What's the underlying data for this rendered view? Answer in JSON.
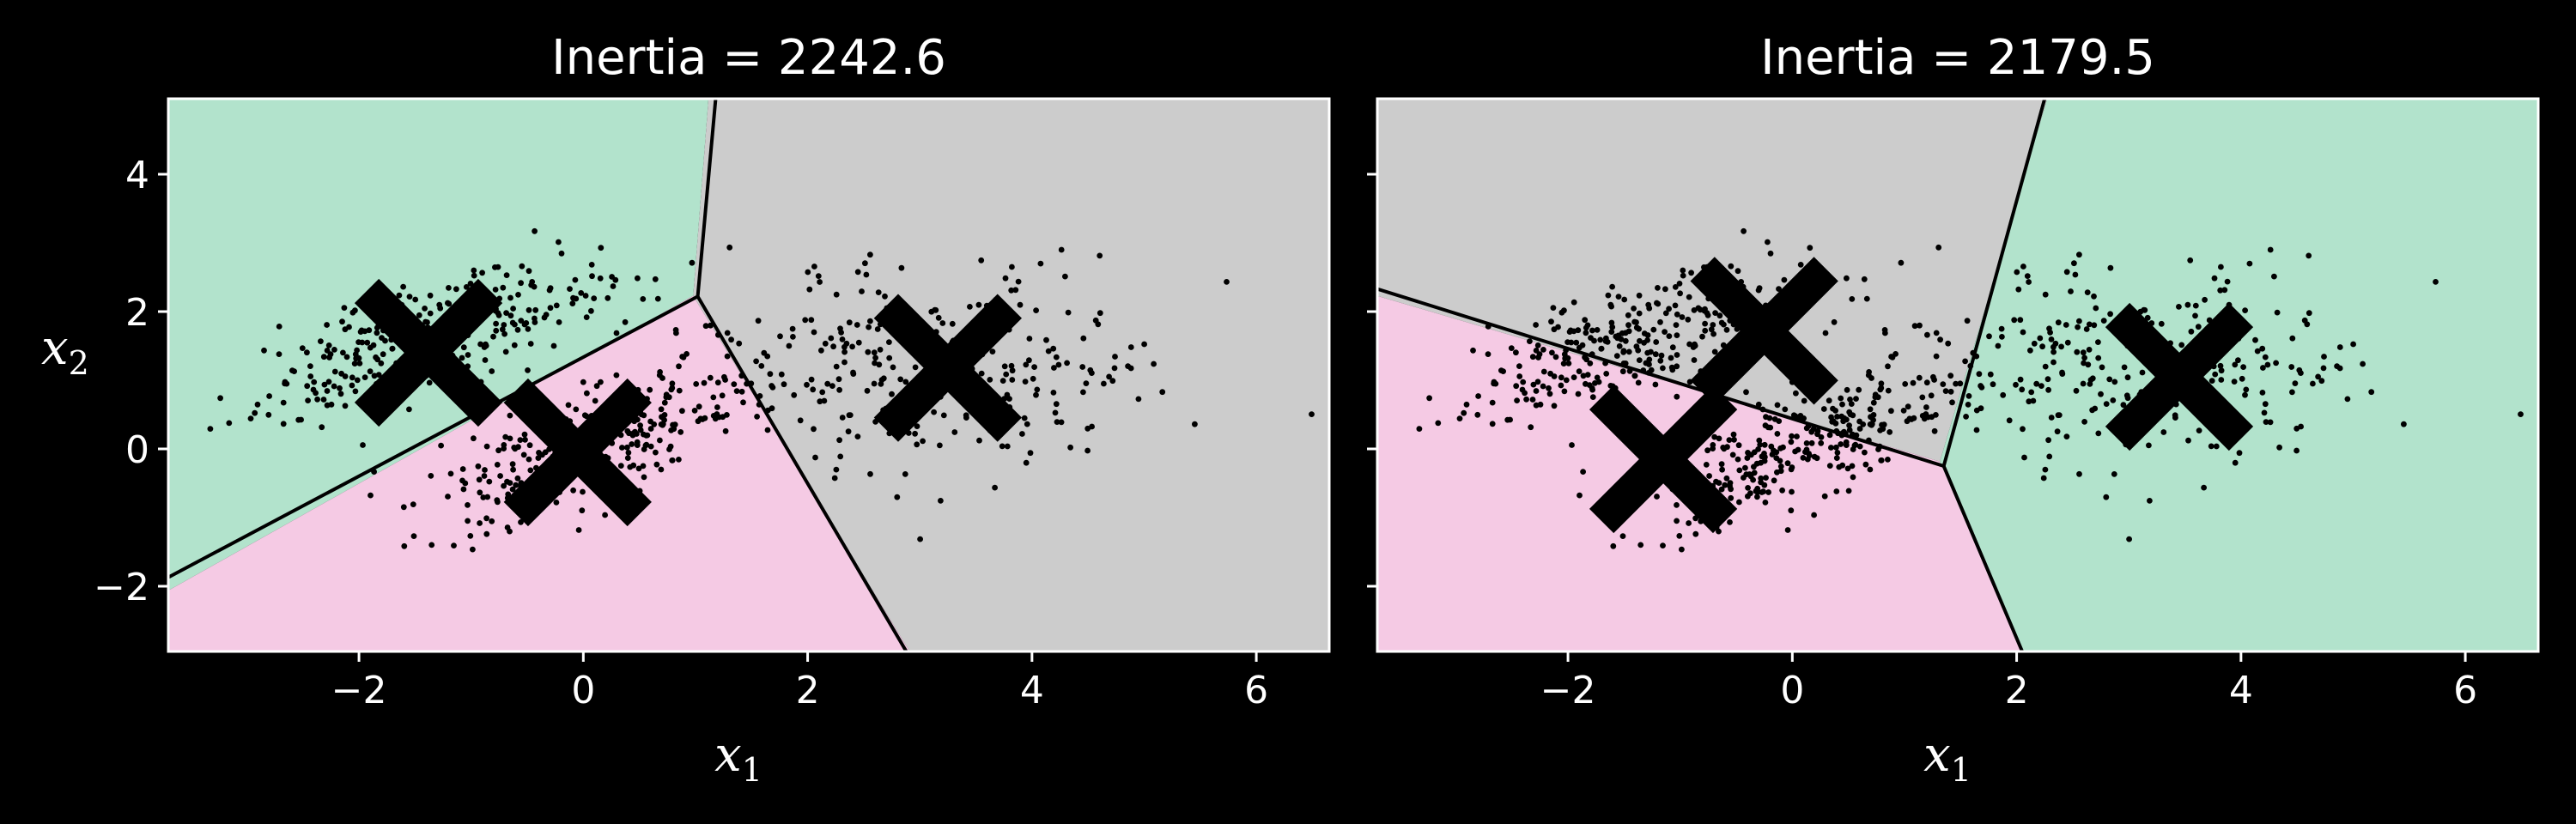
{
  "colors": {
    "background": "#000000",
    "region_green": "#b2e3cc",
    "region_pink": "#f5cae4",
    "region_gray": "#cccccc",
    "points": "#000000",
    "centroid": "#000000",
    "boundary": "#000000",
    "text": "#ffffff",
    "frame": "#ffffff"
  },
  "figure": {
    "x_label_main": "x",
    "x_label_sub": "1",
    "y_label_main": "x",
    "y_label_sub": "2"
  },
  "chart_data": [
    {
      "type": "scatter",
      "title": "Inertia = 2242.6",
      "xlim": [
        -3.7,
        6.65
      ],
      "ylim": [
        -2.95,
        5.1
      ],
      "x_ticks": [
        -2,
        0,
        2,
        4,
        6
      ],
      "x_tick_labels": [
        "−2",
        "0",
        "2",
        "4",
        "6"
      ],
      "y_ticks": [
        -2,
        0,
        2,
        4
      ],
      "y_tick_labels": [
        "−2",
        "0",
        "2",
        "4"
      ],
      "centroids": [
        {
          "x": -1.38,
          "y": 1.4,
          "region": "green"
        },
        {
          "x": -0.05,
          "y": -0.05,
          "region": "pink"
        },
        {
          "x": 3.25,
          "y": 1.18,
          "region": "gray"
        }
      ],
      "decision_boundaries": [
        {
          "points": [
            [
              -3.7,
              -1.87
            ],
            [
              1.02,
              2.22
            ]
          ]
        },
        {
          "points": [
            [
              1.02,
              2.22
            ],
            [
              1.18,
              5.1
            ]
          ]
        },
        {
          "points": [
            [
              1.02,
              2.22
            ],
            [
              2.88,
              -2.95
            ]
          ]
        }
      ],
      "clusters_spread": [
        {
          "cx": -1.4,
          "cy": 1.6,
          "sx": 0.85,
          "sy": 0.55,
          "rho": 0.7,
          "n": 300
        },
        {
          "cx": 0.0,
          "cy": 0.0,
          "sx": 0.75,
          "sy": 0.6,
          "rho": 0.75,
          "n": 300
        },
        {
          "cx": 3.1,
          "cy": 1.2,
          "sx": 1.0,
          "sy": 0.8,
          "rho": 0.0,
          "n": 280
        }
      ]
    },
    {
      "type": "scatter",
      "title": "Inertia = 2179.5",
      "xlim": [
        -3.7,
        6.65
      ],
      "ylim": [
        -2.95,
        5.1
      ],
      "x_ticks": [
        -2,
        0,
        2,
        4,
        6
      ],
      "x_tick_labels": [
        "−2",
        "0",
        "2",
        "4",
        "6"
      ],
      "y_ticks": [
        -2,
        0,
        2,
        4
      ],
      "y_tick_labels": [
        "−2",
        "0",
        "2",
        "4"
      ],
      "centroids": [
        {
          "x": -0.25,
          "y": 1.72,
          "region": "gray"
        },
        {
          "x": -1.15,
          "y": -0.15,
          "region": "pink"
        },
        {
          "x": 3.45,
          "y": 1.05,
          "region": "green"
        }
      ],
      "decision_boundaries": [
        {
          "points": [
            [
              -3.7,
              2.33
            ],
            [
              1.35,
              -0.25
            ]
          ]
        },
        {
          "points": [
            [
              1.35,
              -0.25
            ],
            [
              2.25,
              5.1
            ]
          ]
        },
        {
          "points": [
            [
              1.35,
              -0.25
            ],
            [
              2.05,
              -2.95
            ]
          ]
        }
      ],
      "clusters_spread": [
        {
          "cx": -1.4,
          "cy": 1.6,
          "sx": 0.85,
          "sy": 0.55,
          "rho": 0.7,
          "n": 300
        },
        {
          "cx": 0.0,
          "cy": 0.0,
          "sx": 0.75,
          "sy": 0.6,
          "rho": 0.75,
          "n": 300
        },
        {
          "cx": 3.1,
          "cy": 1.2,
          "sx": 1.0,
          "sy": 0.8,
          "rho": 0.0,
          "n": 280
        }
      ]
    }
  ]
}
